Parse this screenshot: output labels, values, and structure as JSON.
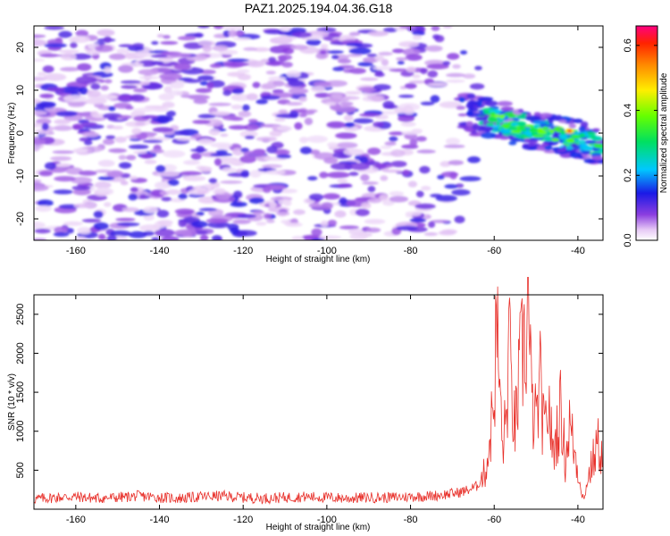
{
  "figure_title": "PAZ1.2025.194.04.36.G18",
  "colors": {
    "snr_line": "#e8302a",
    "axis": "#000000"
  },
  "chart_data": [
    {
      "type": "heatmap",
      "xlabel": "Height of straight line (km)",
      "ylabel": "Frequency (Hz)",
      "xlim": [
        -170,
        -34
      ],
      "ylim": [
        -25,
        25
      ],
      "x_ticks": [
        -160,
        -140,
        -120,
        -100,
        -80,
        -60,
        -40
      ],
      "y_ticks": [
        -20,
        -10,
        0,
        10,
        20
      ],
      "colorbar": {
        "label": "Normalized spectral amplitude",
        "range": [
          0.0,
          0.66
        ],
        "ticks": [
          0.0,
          0.2,
          0.4,
          0.6
        ],
        "colormap": "rainbow (white, violet, blue, cyan, green, yellow, orange, red, magenta)"
      },
      "features": [
        {
          "description": "diffuse low-amplitude noise",
          "x_range": [
            -170,
            -65
          ],
          "y_range": [
            -25,
            25
          ],
          "amplitude": [
            0.02,
            0.14
          ]
        },
        {
          "description": "strong signal band descending in frequency",
          "x_start": -68,
          "x_end": -34,
          "frequency_start": 5,
          "frequency_end": -3,
          "peak_amplitude": 0.62,
          "peak_x": -42,
          "peak_frequency": 0.5
        }
      ]
    },
    {
      "type": "line",
      "xlabel": "Height of straight line (km)",
      "ylabel": "SNR (10 * v/v)",
      "xlim": [
        -170,
        -34
      ],
      "ylim": [
        0,
        2750
      ],
      "x_ticks": [
        -160,
        -140,
        -120,
        -100,
        -80,
        -60,
        -40
      ],
      "y_ticks": [
        500,
        1000,
        1500,
        2000,
        2500
      ],
      "series": [
        {
          "x": [
            -170,
            -165,
            -160,
            -155,
            -150,
            -145,
            -140,
            -135,
            -130,
            -125,
            -120,
            -115,
            -110,
            -105,
            -100,
            -95,
            -90,
            -85,
            -80,
            -75,
            -70,
            -68,
            -66,
            -64,
            -62,
            -61,
            -60,
            -59.5,
            -59,
            -58.5,
            -58,
            -57,
            -56.5,
            -56,
            -55,
            -54,
            -53.5,
            -53,
            -52.5,
            -52,
            -51.5,
            -51,
            -50,
            -49,
            -48,
            -47,
            -46,
            -45,
            -44,
            -43,
            -42,
            -41,
            -40,
            -39,
            -38.5,
            -38,
            -37,
            -36,
            -35,
            -34
          ],
          "y": [
            130,
            150,
            160,
            140,
            150,
            170,
            150,
            140,
            160,
            170,
            150,
            140,
            150,
            160,
            150,
            140,
            150,
            150,
            160,
            170,
            200,
            220,
            250,
            300,
            500,
            900,
            1500,
            2300,
            2000,
            1300,
            800,
            1200,
            2200,
            1600,
            1000,
            1700,
            1900,
            2100,
            2000,
            2750,
            2000,
            1300,
            1100,
            1600,
            900,
            1400,
            700,
            1000,
            1300,
            600,
            1100,
            800,
            500,
            200,
            100,
            300,
            500,
            700,
            850,
            600
          ]
        }
      ]
    }
  ]
}
